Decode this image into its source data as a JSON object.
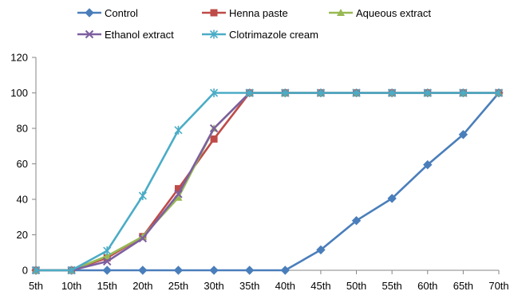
{
  "chart_data": {
    "type": "line",
    "title": "",
    "xlabel": "",
    "ylabel": "",
    "categories": [
      "5th",
      "10th",
      "15th",
      "20th",
      "25th",
      "30th",
      "35th",
      "40th",
      "45th",
      "50th",
      "55th",
      "60th",
      "65th",
      "70th"
    ],
    "ylim": [
      0,
      120
    ],
    "yticks": [
      0,
      20,
      40,
      60,
      80,
      100,
      120
    ],
    "grid": false,
    "legend_position": "top",
    "series": [
      {
        "name": "Control",
        "color": "#4a7ebb",
        "marker": "diamond",
        "values": [
          0,
          0,
          0,
          0,
          0,
          0,
          0,
          0,
          11.5,
          28,
          40.5,
          59.5,
          76.5,
          100
        ]
      },
      {
        "name": "Henna paste",
        "color": "#be4b48",
        "marker": "square",
        "values": [
          0,
          0,
          7,
          19,
          46,
          74,
          100,
          100,
          100,
          100,
          100,
          100,
          100,
          100
        ]
      },
      {
        "name": "Aqueous extract",
        "color": "#98b954",
        "marker": "triangle",
        "values": [
          0,
          0,
          8,
          19,
          41,
          80,
          100,
          100,
          100,
          100,
          100,
          100,
          100,
          100
        ]
      },
      {
        "name": "Ethanol extract",
        "color": "#7d5fa0",
        "marker": "x",
        "values": [
          0,
          0,
          5,
          18,
          43,
          80,
          100,
          100,
          100,
          100,
          100,
          100,
          100,
          100
        ]
      },
      {
        "name": "Clotrimazole cream",
        "color": "#4bacc6",
        "marker": "star",
        "values": [
          0,
          0,
          11,
          42,
          79,
          100,
          100,
          100,
          100,
          100,
          100,
          100,
          100,
          100
        ]
      }
    ]
  }
}
